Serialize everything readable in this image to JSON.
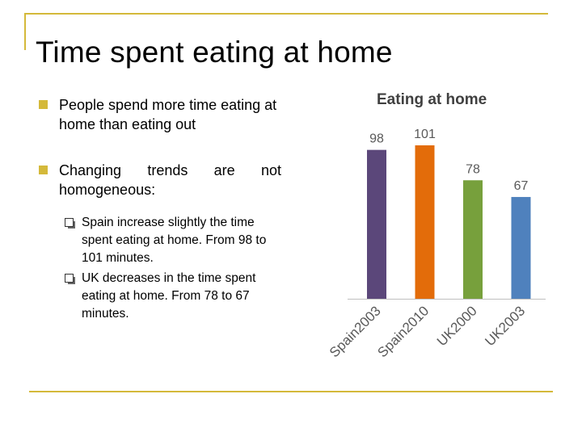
{
  "slide": {
    "title": "Time spent eating at home",
    "bullets": [
      {
        "text": "People spend more time eating at home than eating out"
      },
      {
        "text": "Changing trends are not homogeneous:"
      }
    ],
    "sub_bullets": [
      {
        "text": "Spain increase slightly the time spent eating at home. From 98 to 101 minutes."
      },
      {
        "text": "UK decreases in the time spent eating at home. From 78 to 67 minutes."
      }
    ],
    "colors": {
      "accent": "#d4b93a"
    }
  },
  "chart_data": {
    "type": "bar",
    "title": "Eating at home",
    "categories": [
      "Spain2003",
      "Spain2010",
      "UK2000",
      "UK2003"
    ],
    "values": [
      98,
      101,
      78,
      67
    ],
    "colors": [
      "#5b477a",
      "#e36c0a",
      "#77a03c",
      "#4f81bd"
    ],
    "xlabel": "",
    "ylabel": "",
    "ylim": [
      0,
      101
    ],
    "grid": false,
    "legend": "none"
  }
}
